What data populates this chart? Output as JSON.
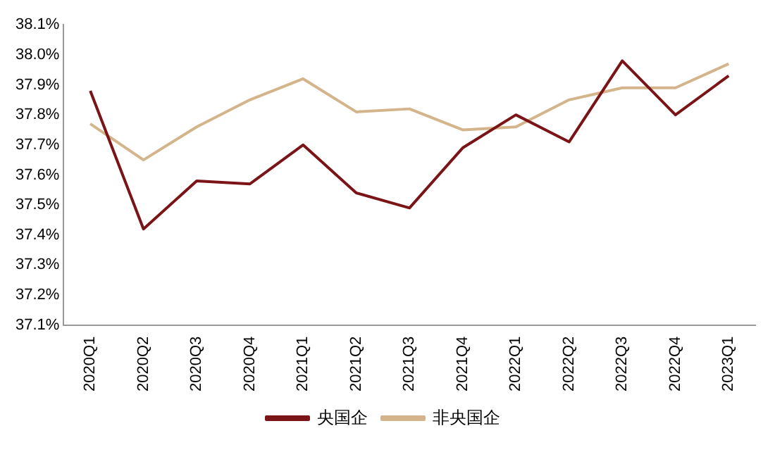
{
  "chart_data": {
    "type": "line",
    "categories": [
      "2020Q1",
      "2020Q2",
      "2020Q3",
      "2020Q4",
      "2021Q1",
      "2021Q2",
      "2021Q3",
      "2021Q4",
      "2022Q1",
      "2022Q2",
      "2022Q3",
      "2022Q4",
      "2023Q1"
    ],
    "series": [
      {
        "name": "央国企",
        "color": "#7b1416",
        "values": [
          37.88,
          37.42,
          37.58,
          37.57,
          37.7,
          37.54,
          37.49,
          37.69,
          37.8,
          37.71,
          37.98,
          37.8,
          37.93
        ]
      },
      {
        "name": "非央国企",
        "color": "#d4b48a",
        "values": [
          37.77,
          37.65,
          37.76,
          37.85,
          37.92,
          37.81,
          37.82,
          37.75,
          37.76,
          37.85,
          37.89,
          37.89,
          37.97
        ]
      }
    ],
    "ylim": [
      37.1,
      38.1
    ],
    "yticks": [
      {
        "value": 37.1,
        "label": "37.1%"
      },
      {
        "value": 37.2,
        "label": "37.2%"
      },
      {
        "value": 37.3,
        "label": "37.3%"
      },
      {
        "value": 37.4,
        "label": "37.4%"
      },
      {
        "value": 37.5,
        "label": "37.5%"
      },
      {
        "value": 37.6,
        "label": "37.6%"
      },
      {
        "value": 37.7,
        "label": "37.7%"
      },
      {
        "value": 37.8,
        "label": "37.8%"
      },
      {
        "value": 37.9,
        "label": "37.9%"
      },
      {
        "value": 38.0,
        "label": "38.0%"
      },
      {
        "value": 38.1,
        "label": "38.1%"
      }
    ],
    "legend": "bottom",
    "marker": "none",
    "line_style": "solid"
  }
}
